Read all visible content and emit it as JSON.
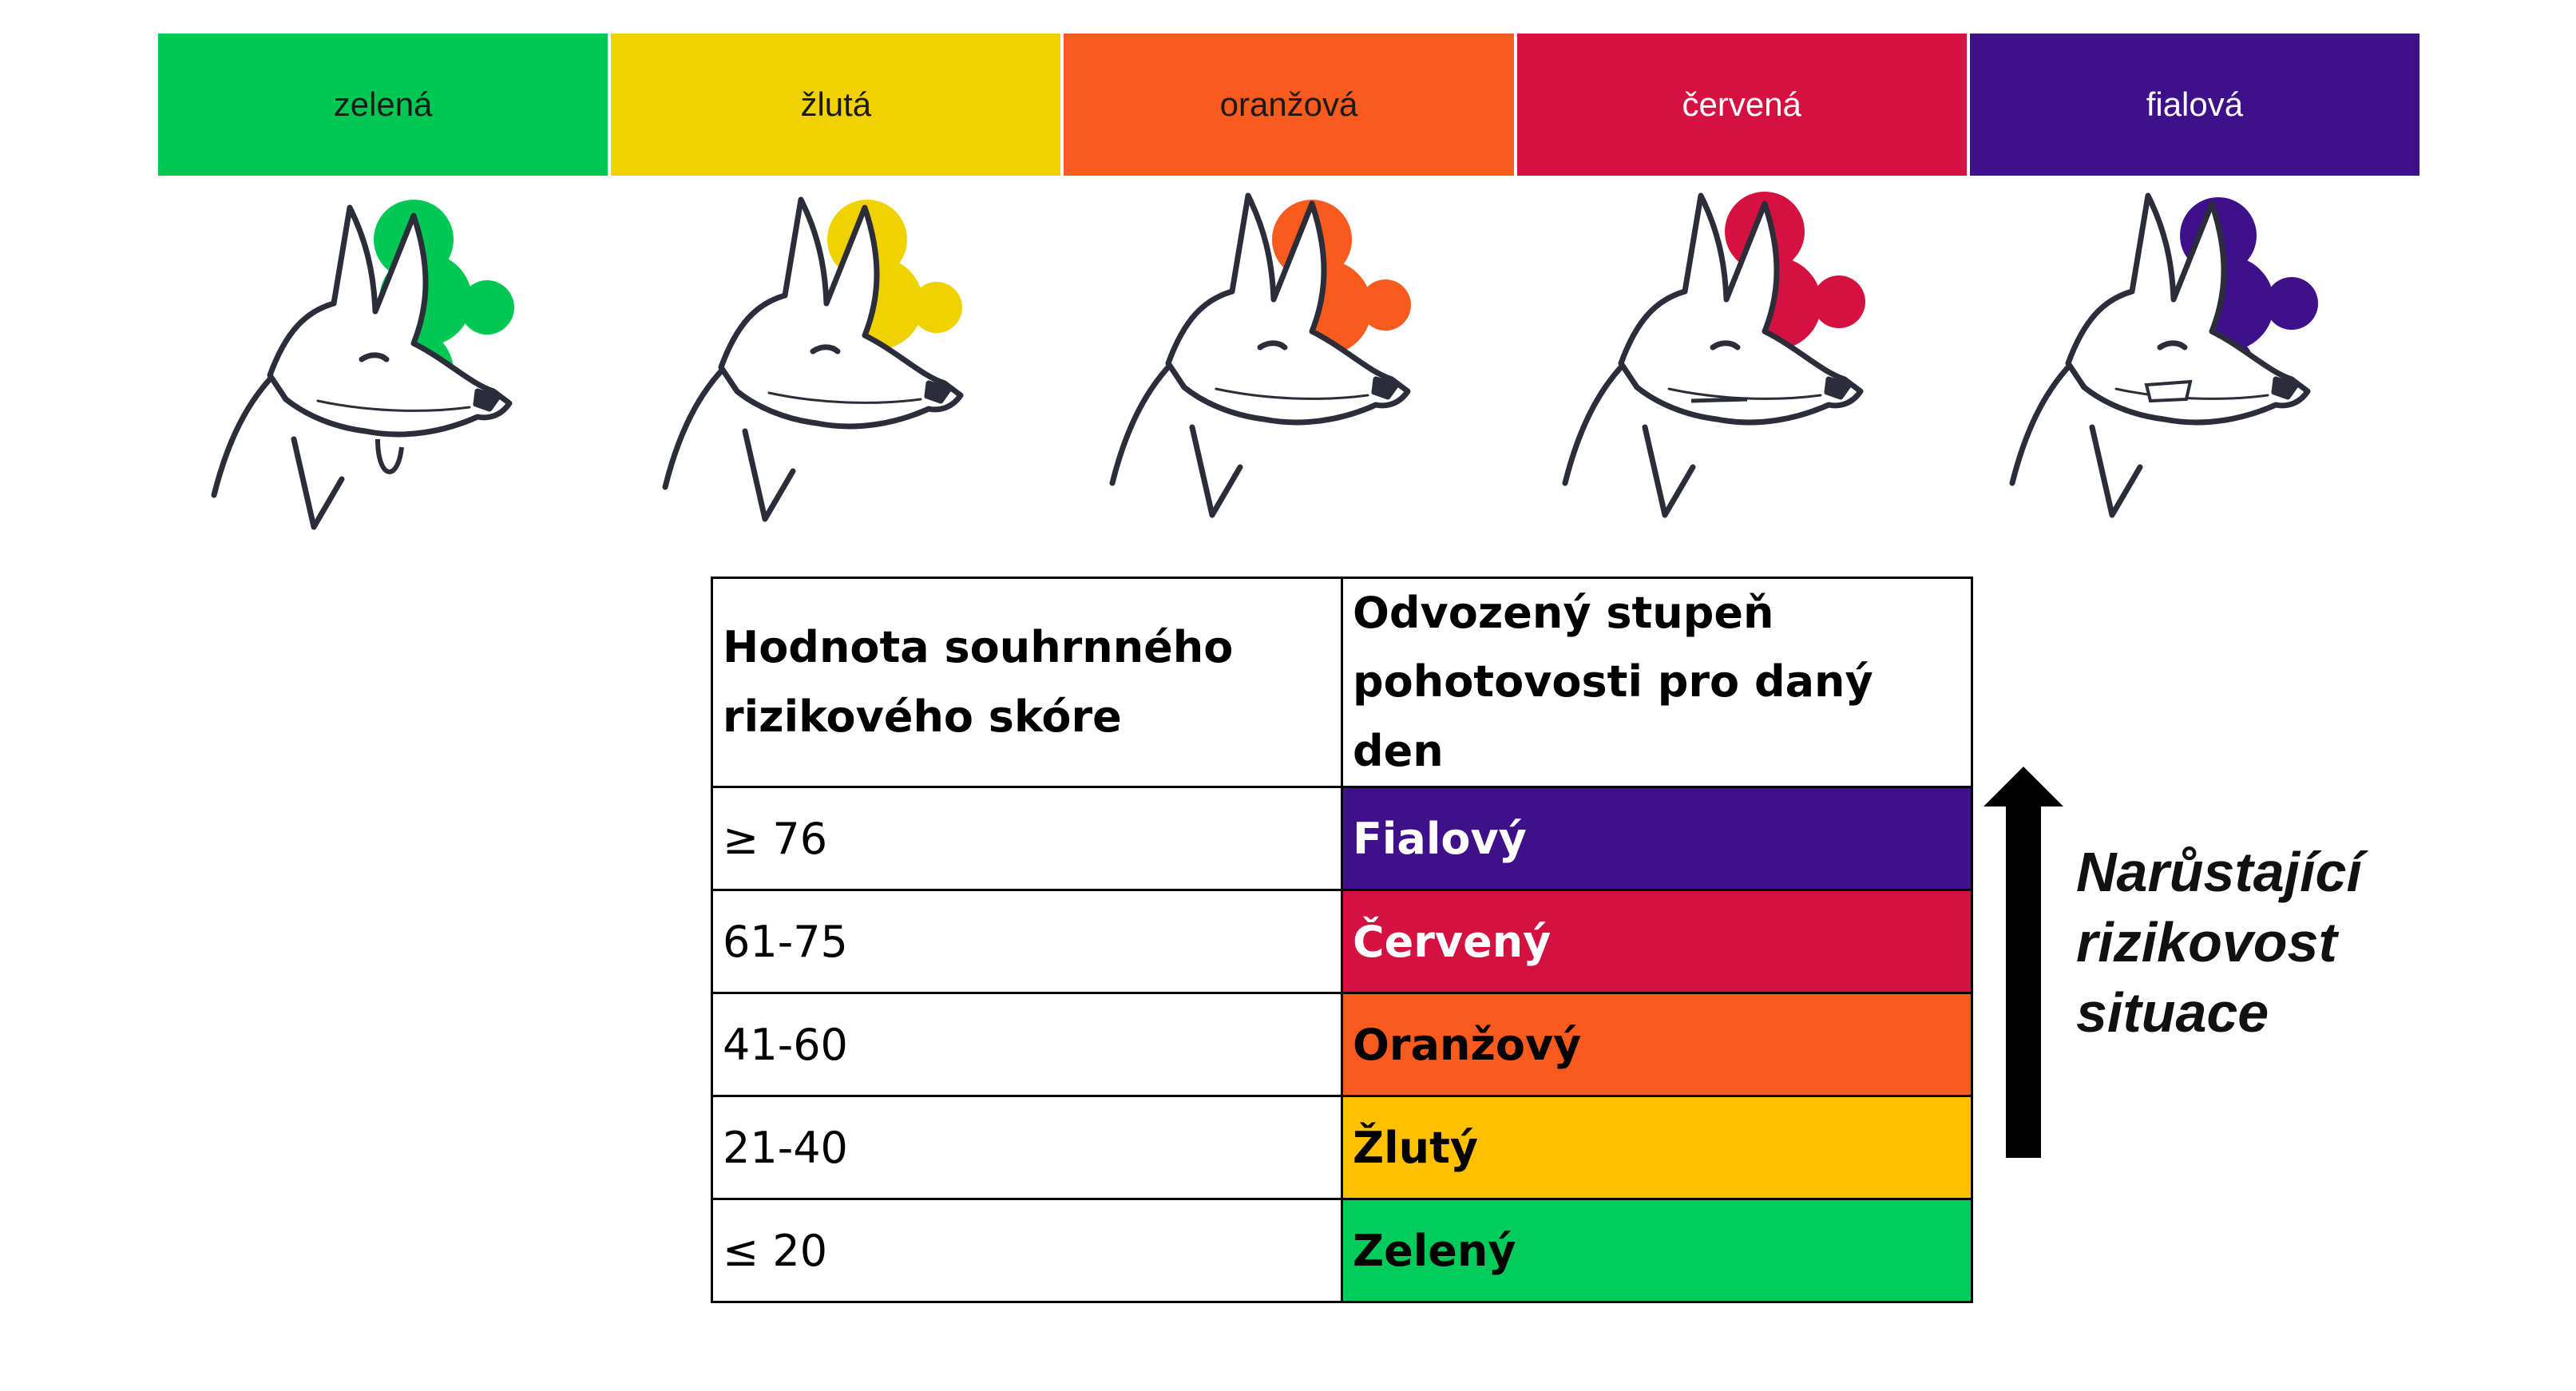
{
  "levels": [
    {
      "label": "zelená",
      "color": "#00c853",
      "text_color": "#1a1a1a"
    },
    {
      "label": "žlutá",
      "color": "#f0d200",
      "text_color": "#1a1a1a"
    },
    {
      "label": "oranžová",
      "color": "#f95a1e",
      "text_color": "#1a1a1a"
    },
    {
      "label": "červená",
      "color": "#d51142",
      "text_color": "#ffffff"
    },
    {
      "label": "fialová",
      "color": "#3e118b",
      "text_color": "#ffffff"
    }
  ],
  "dog_icons": [
    "relaxed-dog-icon",
    "alert-dog-icon",
    "tense-dog-icon",
    "snarling-dog-icon",
    "aggressive-dog-icon"
  ],
  "table": {
    "header_col1": "Hodnota souhrnného rizikového skóre",
    "header_col2": "Odvozený stupeň pohotovosti pro daný den",
    "rows": [
      {
        "score": "≥ 76",
        "level": "Fialový",
        "color": "#3e118b",
        "text_color": "#ffffff"
      },
      {
        "score": "61-75",
        "level": "Červený",
        "color": "#d51142",
        "text_color": "#ffffff"
      },
      {
        "score": "41-60",
        "level": "Oranžový",
        "color": "#f95a1e",
        "text_color": "#000000"
      },
      {
        "score": "21-40",
        "level": "Žlutý",
        "color": "#ffc000",
        "text_color": "#000000"
      },
      {
        "score": "≤ 20",
        "level": "Zelený",
        "color": "#00cc5c",
        "text_color": "#000000"
      }
    ]
  },
  "caption": {
    "line1": "Narůstající",
    "line2": "rizikovost",
    "line3": "situace"
  },
  "arrow_icon": "up-arrow-icon"
}
